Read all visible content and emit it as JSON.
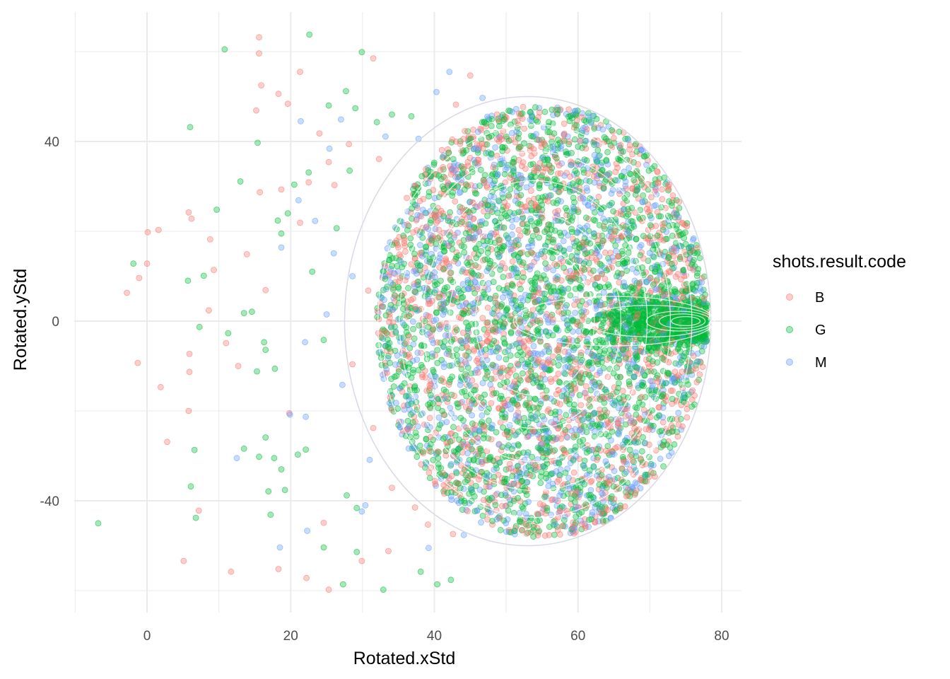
{
  "chart_data": {
    "type": "scatter",
    "xlabel": "Rotated.xStd",
    "ylabel": "Rotated.yStd",
    "xlim": [
      -10,
      82
    ],
    "ylim": [
      -65,
      65
    ],
    "x_ticks": [
      0,
      20,
      40,
      60,
      80
    ],
    "y_ticks": [
      -40,
      0,
      40
    ],
    "x_tick_labels": [
      "0",
      "20",
      "40",
      "60",
      "80"
    ],
    "y_tick_labels": [
      "-40",
      "0",
      "40"
    ],
    "grid": true,
    "point_opacity": 0.35,
    "density_contours": true,
    "legend": {
      "title": "shots.result.code",
      "position": "right",
      "entries": [
        {
          "label": "B",
          "color": "#F8766D"
        },
        {
          "label": "G",
          "color": "#00BA38"
        },
        {
          "label": "M",
          "color": "#619CFF"
        }
      ]
    },
    "series": [
      {
        "name": "B",
        "color": "#F8766D",
        "points": [
          [
            15.6,
            63.2
          ],
          [
            15.6,
            59.6
          ],
          [
            21.3,
            55.5
          ],
          [
            15.9,
            52.5
          ],
          [
            18.3,
            50.6
          ],
          [
            19.6,
            48.4
          ],
          [
            15.2,
            46.9
          ],
          [
            24.0,
            41.8
          ],
          [
            28.1,
            39.4
          ],
          [
            32.3,
            36.1
          ],
          [
            25.3,
            35.4
          ],
          [
            22.5,
            30.9
          ],
          [
            15.7,
            28.7
          ],
          [
            18.7,
            29.3
          ],
          [
            5.8,
            24.2
          ],
          [
            6.2,
            22.8
          ],
          [
            1.6,
            20.3
          ],
          [
            0.1,
            19.8
          ],
          [
            8.8,
            18.2
          ],
          [
            13.9,
            14.9
          ],
          [
            0.0,
            12.8
          ],
          [
            -1.1,
            9.6
          ],
          [
            9.3,
            11.4
          ],
          [
            -2.8,
            6.3
          ],
          [
            16.5,
            6.9
          ],
          [
            8.6,
            2.4
          ],
          [
            11.0,
            -4.9
          ],
          [
            -1.3,
            -9.3
          ],
          [
            5.9,
            -7.3
          ],
          [
            5.9,
            -11.3
          ],
          [
            1.9,
            -14.7
          ],
          [
            12.7,
            -10.0
          ],
          [
            5.8,
            -20.0
          ],
          [
            2.8,
            -26.9
          ],
          [
            19.8,
            -20.5
          ],
          [
            7.2,
            -42.2
          ],
          [
            5.1,
            -53.4
          ],
          [
            11.7,
            -55.8
          ],
          [
            18.3,
            -55.2
          ],
          [
            22.2,
            -57.2
          ],
          [
            25.3,
            -59.8
          ],
          [
            29.9,
            -53.4
          ],
          [
            33.6,
            -51.2
          ],
          [
            24.6,
            -44.9
          ],
          [
            45.0,
            54.7
          ],
          [
            31.5,
            58.5
          ],
          [
            43.0,
            48.2
          ],
          [
            38.9,
            31.7
          ],
          [
            35.8,
            18.6
          ],
          [
            30.8,
            6.8
          ],
          [
            28.6,
            -9.6
          ],
          [
            31.5,
            -23.8
          ],
          [
            34.1,
            -37.1
          ],
          [
            37.3,
            -41.5
          ],
          [
            26.1,
            30.3
          ],
          [
            21.3,
            21.9
          ],
          [
            42.6,
            -47.4
          ],
          [
            39.1,
            -45.3
          ]
        ]
      },
      {
        "name": "G",
        "color": "#00BA38",
        "points": [
          [
            10.8,
            60.5
          ],
          [
            22.6,
            63.8
          ],
          [
            29.9,
            59.9
          ],
          [
            27.7,
            51.2
          ],
          [
            29.0,
            47.4
          ],
          [
            25.3,
            48.0
          ],
          [
            15.4,
            39.7
          ],
          [
            6.0,
            43.2
          ],
          [
            13.0,
            31.1
          ],
          [
            22.5,
            33.1
          ],
          [
            20.5,
            30.4
          ],
          [
            9.7,
            24.8
          ],
          [
            19.6,
            24.0
          ],
          [
            18.2,
            22.4
          ],
          [
            18.7,
            19.5
          ],
          [
            -1.9,
            12.8
          ],
          [
            7.9,
            10.1
          ],
          [
            5.7,
            9.0
          ],
          [
            14.6,
            2.1
          ],
          [
            13.5,
            1.8
          ],
          [
            7.3,
            -1.3
          ],
          [
            11.3,
            -2.7
          ],
          [
            16.3,
            -4.7
          ],
          [
            16.5,
            -6.4
          ],
          [
            17.8,
            -10.6
          ],
          [
            15.3,
            -11.2
          ],
          [
            16.5,
            -25.9
          ],
          [
            6.6,
            -28.7
          ],
          [
            13.5,
            -28.4
          ],
          [
            22.1,
            -28.6
          ],
          [
            21.0,
            -29.7
          ],
          [
            15.6,
            -30.2
          ],
          [
            17.7,
            -30.5
          ],
          [
            18.7,
            -33.0
          ],
          [
            19.2,
            -37.6
          ],
          [
            16.9,
            -37.9
          ],
          [
            6.1,
            -36.8
          ],
          [
            17.2,
            -43.1
          ],
          [
            6.8,
            -43.8
          ],
          [
            -6.8,
            -45.0
          ],
          [
            24.6,
            -50.4
          ],
          [
            29.2,
            -51.4
          ],
          [
            38.1,
            -55.8
          ],
          [
            40.4,
            -58.6
          ],
          [
            42.3,
            -57.6
          ],
          [
            32.9,
            -59.8
          ],
          [
            27.3,
            -58.6
          ],
          [
            29.2,
            -41.6
          ],
          [
            27.8,
            -38.8
          ],
          [
            36.8,
            45.6
          ],
          [
            34.1,
            46.0
          ],
          [
            32.0,
            44.3
          ],
          [
            28.2,
            33.5
          ],
          [
            26.4,
            20.7
          ],
          [
            23.0,
            11.0
          ],
          [
            24.6,
            -4.2
          ]
        ]
      },
      {
        "name": "M",
        "color": "#619CFF",
        "points": [
          [
            42.1,
            55.5
          ],
          [
            40.3,
            51.0
          ],
          [
            21.4,
            44.5
          ],
          [
            21.1,
            26.9
          ],
          [
            18.7,
            16.4
          ],
          [
            26.0,
            15.1
          ],
          [
            22.0,
            -4.7
          ],
          [
            19.9,
            -20.8
          ],
          [
            22.1,
            -21.3
          ],
          [
            12.5,
            -30.5
          ],
          [
            22.3,
            -46.7
          ],
          [
            18.5,
            -50.4
          ],
          [
            29.9,
            -42.4
          ],
          [
            30.4,
            -41.0
          ],
          [
            44.1,
            -47.6
          ],
          [
            27.0,
            44.9
          ],
          [
            25.4,
            38.4
          ],
          [
            33.2,
            41.1
          ],
          [
            28.6,
            10.0
          ],
          [
            27.2,
            -14.2
          ],
          [
            31.0,
            -30.9
          ],
          [
            39.2,
            -50.5
          ],
          [
            46.7,
            49.7
          ],
          [
            37.8,
            40.6
          ],
          [
            23.4,
            22.3
          ],
          [
            25.0,
            1.5
          ]
        ]
      }
    ],
    "dense_cloud": {
      "shape": "disc",
      "center": [
        55,
        0
      ],
      "radius": 23,
      "points_per_series": {
        "B": 1400,
        "G": 2100,
        "M": 1100
      }
    },
    "concentrated_cluster": {
      "series": "G",
      "x_range": [
        62,
        78
      ],
      "y_center": 0,
      "y_spread": 3
    }
  }
}
